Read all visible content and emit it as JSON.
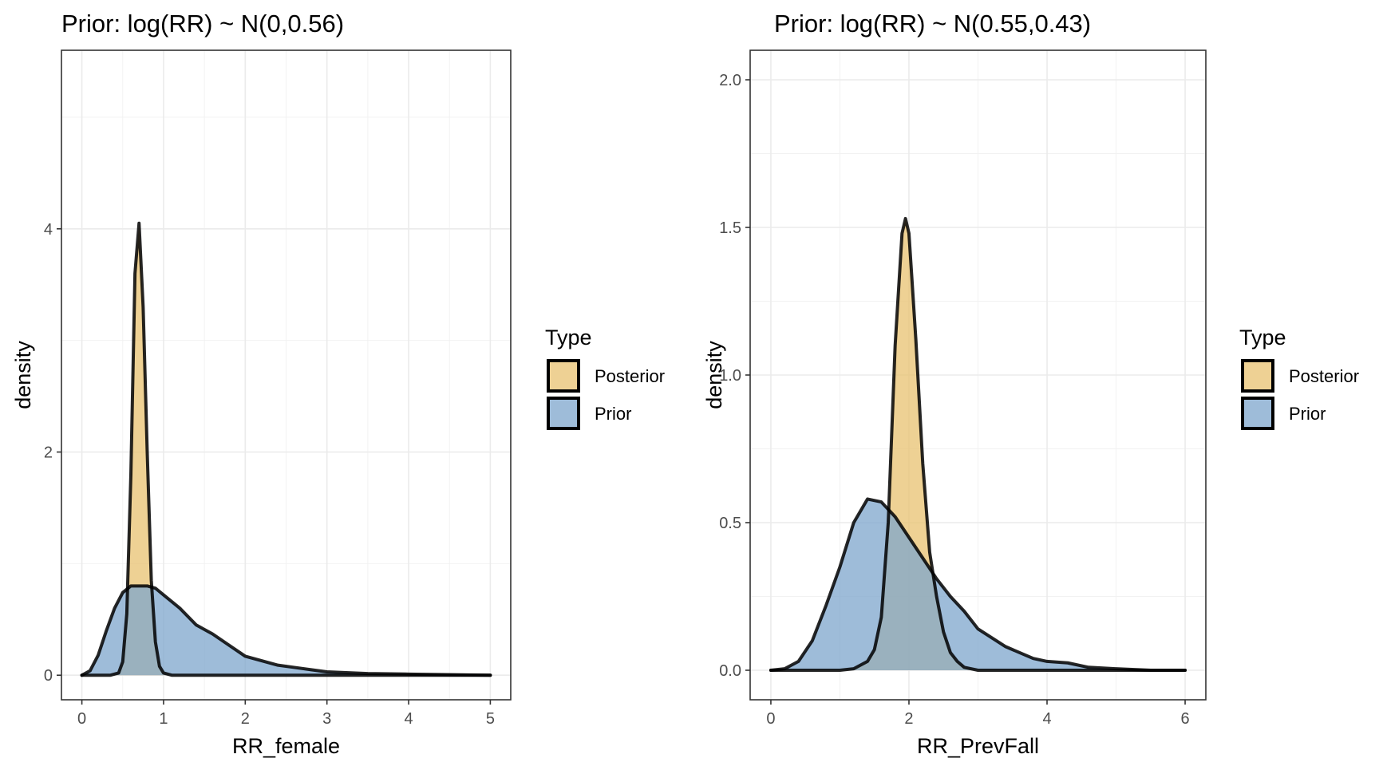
{
  "chart_data": [
    {
      "type": "area",
      "title": "Prior: log(RR) ~ N(0,0.56)",
      "xlabel": "RR_female",
      "ylabel": "density",
      "xlim": [
        -0.25,
        5.25
      ],
      "ylim": [
        -0.22,
        5.6
      ],
      "xticks": [
        0,
        1,
        2,
        3,
        4,
        5
      ],
      "yticks": [
        0,
        2,
        4
      ],
      "grid": true,
      "legend": {
        "title": "Type",
        "position": "right",
        "entries": [
          "Posterior",
          "Prior"
        ]
      },
      "series": [
        {
          "name": "Posterior",
          "color": "#e8c170",
          "x": [
            0.0,
            0.35,
            0.45,
            0.5,
            0.55,
            0.6,
            0.65,
            0.7,
            0.75,
            0.8,
            0.85,
            0.9,
            0.95,
            1.0,
            1.1,
            1.3,
            2.0,
            5.0
          ],
          "y": [
            0.0,
            0.0,
            0.02,
            0.12,
            0.55,
            1.8,
            3.6,
            4.05,
            3.3,
            2.0,
            0.85,
            0.3,
            0.08,
            0.02,
            0.0,
            0.0,
            0.0,
            0.0
          ]
        },
        {
          "name": "Prior",
          "color": "#7ea6cc",
          "x": [
            0.0,
            0.1,
            0.2,
            0.3,
            0.4,
            0.5,
            0.6,
            0.7,
            0.8,
            0.9,
            1.0,
            1.2,
            1.4,
            1.6,
            1.8,
            2.0,
            2.2,
            2.4,
            2.6,
            2.8,
            3.0,
            3.5,
            4.0,
            5.0
          ],
          "y": [
            0.0,
            0.04,
            0.18,
            0.4,
            0.6,
            0.74,
            0.8,
            0.8,
            0.8,
            0.78,
            0.72,
            0.6,
            0.45,
            0.37,
            0.27,
            0.17,
            0.13,
            0.09,
            0.07,
            0.05,
            0.03,
            0.015,
            0.01,
            0.0
          ]
        }
      ]
    },
    {
      "type": "area",
      "title": "Prior: log(RR) ~ N(0.55,0.43)",
      "xlabel": "RR_PrevFall",
      "ylabel": "density",
      "xlim": [
        -0.3,
        6.3
      ],
      "ylim": [
        -0.1,
        2.1
      ],
      "xticks": [
        0,
        2,
        4,
        6
      ],
      "ytick_labels": [
        "0.0",
        "0.5",
        "1.0",
        "1.5",
        "2.0"
      ],
      "yticks": [
        0,
        0.5,
        1.0,
        1.5,
        2.0
      ],
      "grid": true,
      "legend": {
        "title": "Type",
        "position": "right",
        "entries": [
          "Posterior",
          "Prior"
        ]
      },
      "series": [
        {
          "name": "Posterior",
          "color": "#e8c170",
          "x": [
            0.0,
            1.0,
            1.2,
            1.4,
            1.5,
            1.6,
            1.7,
            1.8,
            1.9,
            1.95,
            2.0,
            2.1,
            2.2,
            2.3,
            2.4,
            2.5,
            2.6,
            2.7,
            2.8,
            3.0,
            3.5,
            6.0
          ],
          "y": [
            0.0,
            0.0,
            0.005,
            0.03,
            0.07,
            0.18,
            0.5,
            1.1,
            1.48,
            1.53,
            1.48,
            1.12,
            0.7,
            0.4,
            0.25,
            0.13,
            0.06,
            0.03,
            0.01,
            0.0,
            0.0,
            0.0
          ]
        },
        {
          "name": "Prior",
          "color": "#7ea6cc",
          "x": [
            0.0,
            0.2,
            0.4,
            0.6,
            0.8,
            1.0,
            1.2,
            1.4,
            1.6,
            1.8,
            2.0,
            2.2,
            2.4,
            2.6,
            2.8,
            3.0,
            3.2,
            3.4,
            3.6,
            3.8,
            4.0,
            4.3,
            4.6,
            5.0,
            5.5,
            6.0
          ],
          "y": [
            0.0,
            0.005,
            0.03,
            0.1,
            0.22,
            0.35,
            0.5,
            0.58,
            0.57,
            0.52,
            0.45,
            0.38,
            0.31,
            0.25,
            0.2,
            0.14,
            0.11,
            0.08,
            0.06,
            0.04,
            0.03,
            0.025,
            0.01,
            0.005,
            0.0,
            0.0
          ]
        }
      ]
    }
  ]
}
